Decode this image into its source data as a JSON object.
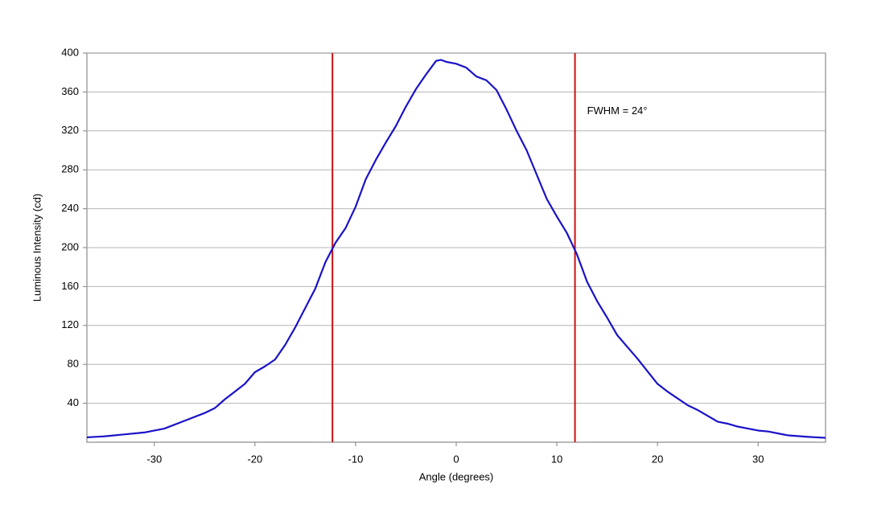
{
  "chart_data": {
    "type": "line",
    "x_label": "Angle (degrees)",
    "y_label": "Luminous Intensity (cd)",
    "xlim": [
      -36.7,
      36.7
    ],
    "ylim": [
      0,
      400
    ],
    "xticks": [
      -30,
      -20,
      -10,
      0,
      10,
      20,
      30
    ],
    "yticks": [
      40,
      80,
      120,
      160,
      200,
      240,
      280,
      320,
      360,
      400
    ],
    "grid": true,
    "series": [
      {
        "name": "Intensity",
        "color": "#1a12c8",
        "x": [
          -36.7,
          -35,
          -33,
          -31,
          -29,
          -27,
          -25,
          -24,
          -23,
          -22,
          -21,
          -20,
          -19,
          -18,
          -17,
          -16,
          -15,
          -14,
          -13,
          -12,
          -11,
          -10,
          -9,
          -8,
          -7,
          -6,
          -5,
          -4,
          -3,
          -2,
          -1.5,
          -1,
          0,
          1,
          2,
          3,
          4,
          5,
          6,
          7,
          8,
          9,
          10,
          11,
          12,
          13,
          14,
          15,
          16,
          17,
          18,
          19,
          20,
          21,
          22,
          23,
          24,
          25,
          26,
          27,
          28,
          29,
          30,
          31,
          32,
          33,
          35,
          36.7
        ],
        "values": [
          5,
          6,
          8,
          10,
          14,
          22,
          30,
          35,
          44,
          52,
          60,
          72,
          78,
          85,
          100,
          118,
          138,
          158,
          185,
          205,
          220,
          242,
          270,
          290,
          308,
          325,
          345,
          363,
          378,
          392,
          393,
          391,
          389,
          385,
          376,
          372,
          362,
          342,
          320,
          300,
          275,
          250,
          232,
          215,
          193,
          165,
          145,
          128,
          110,
          98,
          86,
          73,
          60,
          52,
          45,
          38,
          33,
          27,
          21,
          19,
          16,
          14,
          12,
          11,
          9,
          7,
          5.5,
          4.5
        ]
      }
    ],
    "vertical_lines": [
      -12.3,
      11.8
    ],
    "vertical_line_color": "#cc1111",
    "annotation": {
      "text": "FWHM = 24°",
      "x": 13,
      "y": 340
    }
  }
}
